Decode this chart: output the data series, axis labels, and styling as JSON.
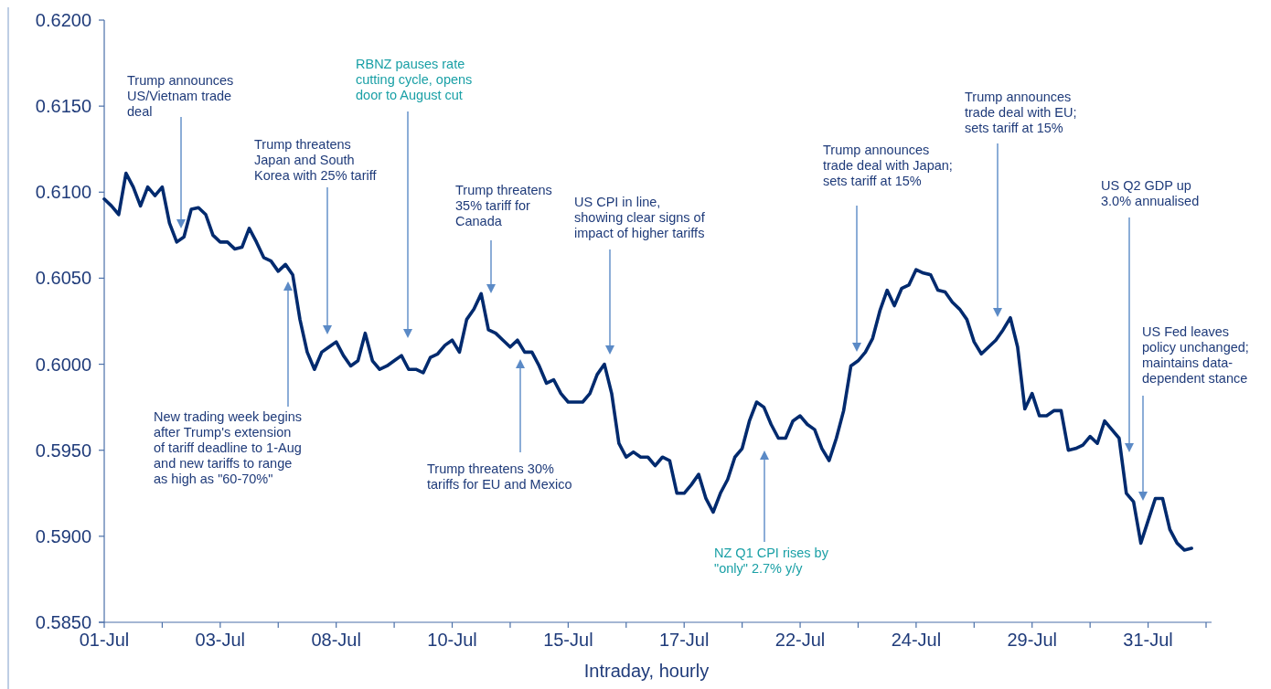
{
  "chart_data": {
    "type": "line",
    "xlabel": "Intraday, hourly",
    "categories": [
      "01-Jul",
      null,
      null,
      null,
      null,
      null,
      null,
      null,
      null,
      null,
      null,
      null,
      null,
      null,
      null,
      null,
      "03-Jul",
      null,
      null,
      null,
      null,
      null,
      null,
      null,
      null,
      null,
      null,
      null,
      null,
      null,
      null,
      null,
      "08-Jul",
      null,
      null,
      null,
      null,
      null,
      null,
      null,
      null,
      null,
      null,
      null,
      null,
      null,
      null,
      null,
      "10-Jul",
      null,
      null,
      null,
      null,
      null,
      null,
      null,
      null,
      null,
      null,
      null,
      null,
      null,
      null,
      null,
      "15-Jul",
      null,
      null,
      null,
      null,
      null,
      null,
      null,
      null,
      null,
      null,
      null,
      null,
      null,
      null,
      null,
      "17-Jul",
      null,
      null,
      null,
      null,
      null,
      null,
      null,
      null,
      null,
      null,
      null,
      null,
      null,
      null,
      null,
      "22-Jul",
      null,
      null,
      null,
      null,
      null,
      null,
      null,
      null,
      null,
      null,
      null,
      null,
      null,
      null,
      null,
      "24-Jul",
      null,
      null,
      null,
      null,
      null,
      null,
      null,
      null,
      null,
      null,
      null,
      null,
      null,
      null,
      null,
      "29-Jul",
      null,
      null,
      null,
      null,
      null,
      null,
      null,
      null,
      null,
      null,
      null,
      null,
      null,
      null,
      null,
      "31-Jul",
      null,
      null,
      null,
      null,
      null,
      null,
      null,
      null
    ],
    "series": [
      {
        "color": "#002a6e",
        "values": [
          0.6096,
          0.6092,
          0.6087,
          0.6111,
          0.6103,
          0.6092,
          0.6103,
          0.6098,
          0.6103,
          0.6082,
          0.6071,
          0.6074,
          0.609,
          0.6091,
          0.6087,
          0.6075,
          0.6071,
          0.6071,
          0.6067,
          0.6068,
          0.6079,
          0.6071,
          0.6062,
          0.606,
          0.6054,
          0.6058,
          0.6052,
          0.6026,
          0.6007,
          0.5997,
          0.6007,
          0.601,
          0.6013,
          0.6005,
          0.5999,
          0.6002,
          0.6018,
          0.6002,
          0.5997,
          0.5999,
          0.6002,
          0.6005,
          0.5997,
          0.5997,
          0.5995,
          0.6004,
          0.6006,
          0.6011,
          0.6014,
          0.6007,
          0.6026,
          0.6032,
          0.6041,
          0.602,
          0.6018,
          0.6014,
          0.601,
          0.6014,
          0.6007,
          0.6007,
          0.5999,
          0.5989,
          0.5991,
          0.5983,
          0.5978,
          0.5978,
          0.5978,
          0.5983,
          0.5994,
          0.6,
          0.5983,
          0.5954,
          0.5946,
          0.5949,
          0.5946,
          0.5946,
          0.5941,
          0.5946,
          0.5944,
          0.5925,
          0.5925,
          0.593,
          0.5936,
          0.5922,
          0.5914,
          0.5925,
          0.5933,
          0.5946,
          0.5951,
          0.5967,
          0.5978,
          0.5975,
          0.5965,
          0.5957,
          0.5957,
          0.5967,
          0.597,
          0.5965,
          0.5962,
          0.5951,
          0.5944,
          0.5957,
          0.5973,
          0.5999,
          0.6002,
          0.6007,
          0.6015,
          0.6031,
          0.6043,
          0.6034,
          0.6044,
          0.6046,
          0.6055,
          0.6053,
          0.6052,
          0.6043,
          0.6042,
          0.6036,
          0.6032,
          0.6026,
          0.6013,
          0.6006,
          0.601,
          0.6014,
          0.602,
          0.6027,
          0.601,
          0.5974,
          0.5983,
          0.597,
          0.597,
          0.5973,
          0.5973,
          0.595,
          0.5951,
          0.5953,
          0.5958,
          0.5954,
          0.5967,
          0.5962,
          0.5957,
          0.5925,
          0.592,
          0.5896,
          0.5909,
          0.5922,
          0.5922,
          0.5904,
          0.5896,
          0.5892,
          0.5893,
          null,
          null
        ]
      }
    ],
    "ylim": [
      0.585,
      0.62
    ],
    "yticks": [
      {
        "value": 0.585,
        "label": "0.5850"
      },
      {
        "value": 0.59,
        "label": "0.5900"
      },
      {
        "value": 0.595,
        "label": "0.5950"
      },
      {
        "value": 0.6,
        "label": "0.6000"
      },
      {
        "value": 0.605,
        "label": "0.6050"
      },
      {
        "value": 0.61,
        "label": "0.6100"
      },
      {
        "value": 0.615,
        "label": "0.6150"
      },
      {
        "value": 0.62,
        "label": "0.6200"
      }
    ],
    "grid": false,
    "annotations": [
      "Trump announces\nUS/Vietnam trade\ndeal",
      "RBNZ pauses rate\ncutting cycle, opens\ndoor to August cut",
      "Trump threatens\nJapan and South\nKorea with 25% tariff",
      "Trump threatens\n35% tariff for\nCanada",
      "US CPI in line,\nshowing clear signs of\nimpact of higher tariffs",
      "Trump announces\ntrade deal with Japan;\nsets tariff at 15%",
      "Trump announces\ntrade deal with EU;\nsets tariff at 15%",
      "US Q2 GDP up\n3.0% annualised",
      "US Fed leaves\npolicy unchanged;\nmaintains data-\ndependent stance",
      "New trading week begins\nafter Trump's extension\nof tariff deadline to 1-Aug\nand new tariffs to range\nas high as \"60-70%\"",
      "Trump threatens 30%\ntariffs for EU and Mexico",
      "NZ Q1 CPI rises by\n\"only\" 2.7% y/y"
    ]
  }
}
